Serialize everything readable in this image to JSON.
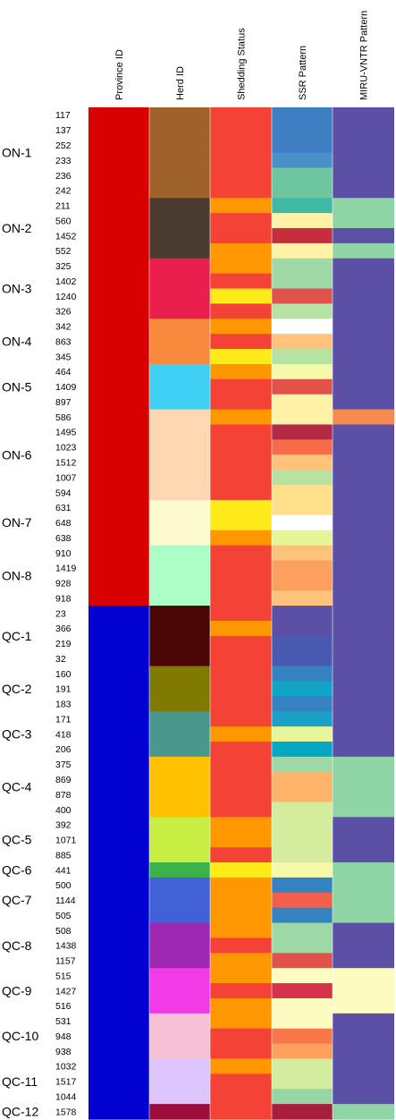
{
  "chart_data": {
    "type": "heatmap",
    "columns": [
      "Province ID",
      "Herd ID",
      "Shedding Status",
      "SSR Pattern",
      "MIRU-VNTR Pattern"
    ],
    "groups": [
      {
        "label": "ON-1",
        "rows": [
          0,
          5
        ]
      },
      {
        "label": "ON-2",
        "rows": [
          6,
          9
        ]
      },
      {
        "label": "ON-3",
        "rows": [
          10,
          13
        ]
      },
      {
        "label": "ON-4",
        "rows": [
          14,
          16
        ]
      },
      {
        "label": "ON-5",
        "rows": [
          17,
          19
        ]
      },
      {
        "label": "ON-6",
        "rows": [
          20,
          25
        ]
      },
      {
        "label": "ON-7",
        "rows": [
          26,
          28
        ]
      },
      {
        "label": "ON-8",
        "rows": [
          29,
          32
        ]
      },
      {
        "label": "QC-1",
        "rows": [
          33,
          36
        ]
      },
      {
        "label": "QC-2",
        "rows": [
          37,
          39
        ]
      },
      {
        "label": "QC-3",
        "rows": [
          40,
          42
        ]
      },
      {
        "label": "QC-4",
        "rows": [
          43,
          46
        ]
      },
      {
        "label": "QC-5",
        "rows": [
          47,
          49
        ]
      },
      {
        "label": "QC-6",
        "rows": [
          50,
          50
        ]
      },
      {
        "label": "QC-7",
        "rows": [
          51,
          53
        ]
      },
      {
        "label": "QC-8",
        "rows": [
          54,
          56
        ]
      },
      {
        "label": "QC-9",
        "rows": [
          57,
          59
        ]
      },
      {
        "label": "QC-10",
        "rows": [
          60,
          62
        ]
      },
      {
        "label": "QC-11",
        "rows": [
          63,
          65
        ]
      },
      {
        "label": "QC-12",
        "rows": [
          66,
          66
        ]
      }
    ],
    "samples": [
      {
        "id": "117",
        "colors": [
          "#d90000",
          "#a0622b",
          "#f44336",
          "#3d7fc2",
          "#5b50a5"
        ]
      },
      {
        "id": "137",
        "colors": [
          "#d90000",
          "#a0622b",
          "#f44336",
          "#3d7fc2",
          "#5b50a5"
        ]
      },
      {
        "id": "252",
        "colors": [
          "#d90000",
          "#a0622b",
          "#f44336",
          "#3d7fc2",
          "#5b50a5"
        ]
      },
      {
        "id": "233",
        "colors": [
          "#d90000",
          "#a0622b",
          "#f44336",
          "#4a90c8",
          "#5b50a5"
        ]
      },
      {
        "id": "236",
        "colors": [
          "#d90000",
          "#a0622b",
          "#f44336",
          "#6ec6a0",
          "#5b50a5"
        ]
      },
      {
        "id": "242",
        "colors": [
          "#d90000",
          "#a0622b",
          "#f44336",
          "#6ec6a0",
          "#5b50a5"
        ]
      },
      {
        "id": "211",
        "colors": [
          "#d90000",
          "#4a3c31",
          "#ff9800",
          "#3fb8a4",
          "#8fd4a4"
        ]
      },
      {
        "id": "560",
        "colors": [
          "#d90000",
          "#4a3c31",
          "#f44336",
          "#fdf2a8",
          "#8fd4a4"
        ]
      },
      {
        "id": "1452",
        "colors": [
          "#d90000",
          "#4a3c31",
          "#f44336",
          "#c62e3e",
          "#5b50a5"
        ]
      },
      {
        "id": "552",
        "colors": [
          "#d90000",
          "#4a3c31",
          "#ff9800",
          "#fdf2a8",
          "#8fd4a4"
        ]
      },
      {
        "id": "325",
        "colors": [
          "#d90000",
          "#e91e4c",
          "#ff9800",
          "#9ed8a6",
          "#5b50a5"
        ]
      },
      {
        "id": "1402",
        "colors": [
          "#d90000",
          "#e91e4c",
          "#f44336",
          "#9ed8a6",
          "#5b50a5"
        ]
      },
      {
        "id": "1240",
        "colors": [
          "#d90000",
          "#e91e4c",
          "#ffeb1a",
          "#e0524a",
          "#5b50a5"
        ]
      },
      {
        "id": "326",
        "colors": [
          "#d90000",
          "#e91e4c",
          "#f44336",
          "#b6e2a4",
          "#5b50a5"
        ]
      },
      {
        "id": "342",
        "colors": [
          "#d90000",
          "#f78a3c",
          "#ff9800",
          "#ffffff",
          "#5b50a5"
        ]
      },
      {
        "id": "863",
        "colors": [
          "#d90000",
          "#f78a3c",
          "#f44336",
          "#fec27a",
          "#5b50a5"
        ]
      },
      {
        "id": "345",
        "colors": [
          "#d90000",
          "#f78a3c",
          "#ffeb1a",
          "#b6e2a4",
          "#5b50a5"
        ]
      },
      {
        "id": "464",
        "colors": [
          "#d90000",
          "#3fcff2",
          "#ff9800",
          "#f4f8a8",
          "#5b50a5"
        ]
      },
      {
        "id": "1409",
        "colors": [
          "#d90000",
          "#3fcff2",
          "#f44336",
          "#e0524a",
          "#5b50a5"
        ]
      },
      {
        "id": "897",
        "colors": [
          "#d90000",
          "#3fcff2",
          "#f44336",
          "#fdf2a8",
          "#5b50a5"
        ]
      },
      {
        "id": "586",
        "colors": [
          "#d90000",
          "#fdd6b2",
          "#ff9800",
          "#fdf2a8",
          "#f78a4e"
        ]
      },
      {
        "id": "1495",
        "colors": [
          "#d90000",
          "#fdd6b2",
          "#f44336",
          "#b22a45",
          "#5b50a5"
        ]
      },
      {
        "id": "1023",
        "colors": [
          "#d90000",
          "#fdd6b2",
          "#f44336",
          "#f86b48",
          "#5b50a5"
        ]
      },
      {
        "id": "1512",
        "colors": [
          "#d90000",
          "#fdd6b2",
          "#f44336",
          "#fec27a",
          "#5b50a5"
        ]
      },
      {
        "id": "1007",
        "colors": [
          "#d90000",
          "#fdd6b2",
          "#f44336",
          "#b6e2a4",
          "#5b50a5"
        ]
      },
      {
        "id": "594",
        "colors": [
          "#d90000",
          "#fdd6b2",
          "#f44336",
          "#fee08b",
          "#5b50a5"
        ]
      },
      {
        "id": "631",
        "colors": [
          "#d90000",
          "#fefbd0",
          "#ffeb1a",
          "#fee08b",
          "#5b50a5"
        ]
      },
      {
        "id": "648",
        "colors": [
          "#d90000",
          "#fefbd0",
          "#ffeb1a",
          "#ffffff",
          "#5b50a5"
        ]
      },
      {
        "id": "638",
        "colors": [
          "#d90000",
          "#fefbd0",
          "#ff9800",
          "#e6f59a",
          "#5b50a5"
        ]
      },
      {
        "id": "910",
        "colors": [
          "#d90000",
          "#acfcc6",
          "#f44336",
          "#fec27a",
          "#5b50a5"
        ]
      },
      {
        "id": "1419",
        "colors": [
          "#d90000",
          "#acfcc6",
          "#f44336",
          "#fda05e",
          "#5b50a5"
        ]
      },
      {
        "id": "928",
        "colors": [
          "#d90000",
          "#acfcc6",
          "#f44336",
          "#fda05e",
          "#5b50a5"
        ]
      },
      {
        "id": "918",
        "colors": [
          "#d90000",
          "#acfcc6",
          "#f44336",
          "#fec27a",
          "#5b50a5"
        ]
      },
      {
        "id": "23",
        "colors": [
          "#0000d0",
          "#4a0505",
          "#f44336",
          "#5b50a5",
          "#5b50a5"
        ]
      },
      {
        "id": "366",
        "colors": [
          "#0000d0",
          "#4a0505",
          "#ff9800",
          "#5b50a5",
          "#5b50a5"
        ]
      },
      {
        "id": "219",
        "colors": [
          "#0000d0",
          "#4a0505",
          "#f44336",
          "#4a5ab0",
          "#5b50a5"
        ]
      },
      {
        "id": "32",
        "colors": [
          "#0000d0",
          "#4a0505",
          "#f44336",
          "#4a5ab0",
          "#5b50a5"
        ]
      },
      {
        "id": "160",
        "colors": [
          "#0000d0",
          "#7f7a00",
          "#f44336",
          "#3483c0",
          "#5b50a5"
        ]
      },
      {
        "id": "191",
        "colors": [
          "#0000d0",
          "#7f7a00",
          "#f44336",
          "#0fa6c6",
          "#5b50a5"
        ]
      },
      {
        "id": "183",
        "colors": [
          "#0000d0",
          "#7f7a00",
          "#f44336",
          "#3483c0",
          "#5b50a5"
        ]
      },
      {
        "id": "171",
        "colors": [
          "#0000d0",
          "#4a978e",
          "#f44336",
          "#1ba0c8",
          "#5b50a5"
        ]
      },
      {
        "id": "418",
        "colors": [
          "#0000d0",
          "#4a978e",
          "#ff9800",
          "#e6f59a",
          "#5b50a5"
        ]
      },
      {
        "id": "206",
        "colors": [
          "#0000d0",
          "#4a978e",
          "#f44336",
          "#05a8c2",
          "#5b50a5"
        ]
      },
      {
        "id": "375",
        "colors": [
          "#0000d0",
          "#ffc000",
          "#f44336",
          "#9ed8a6",
          "#8fd4a4"
        ]
      },
      {
        "id": "869",
        "colors": [
          "#0000d0",
          "#ffc000",
          "#f44336",
          "#fdb46a",
          "#8fd4a4"
        ]
      },
      {
        "id": "878",
        "colors": [
          "#0000d0",
          "#ffc000",
          "#f44336",
          "#fdb46a",
          "#8fd4a4"
        ]
      },
      {
        "id": "400",
        "colors": [
          "#0000d0",
          "#ffc000",
          "#f44336",
          "#d4ec9e",
          "#8fd4a4"
        ]
      },
      {
        "id": "392",
        "colors": [
          "#0000d0",
          "#c8ee44",
          "#ff9800",
          "#d4ec9e",
          "#5b50a5"
        ]
      },
      {
        "id": "1071",
        "colors": [
          "#0000d0",
          "#c8ee44",
          "#ff9800",
          "#d4ec9e",
          "#5b50a5"
        ]
      },
      {
        "id": "885",
        "colors": [
          "#0000d0",
          "#c8ee44",
          "#f44336",
          "#d4ec9e",
          "#5b50a5"
        ]
      },
      {
        "id": "441",
        "colors": [
          "#0000d0",
          "#3cb24a",
          "#ffeb1a",
          "#f4f8a8",
          "#8fd4a4"
        ]
      },
      {
        "id": "500",
        "colors": [
          "#0000d0",
          "#4361d6",
          "#ff9800",
          "#3483c0",
          "#8fd4a4"
        ]
      },
      {
        "id": "1144",
        "colors": [
          "#0000d0",
          "#4361d6",
          "#ff9800",
          "#f0604a",
          "#8fd4a4"
        ]
      },
      {
        "id": "505",
        "colors": [
          "#0000d0",
          "#4361d6",
          "#ff9800",
          "#3483c0",
          "#8fd4a4"
        ]
      },
      {
        "id": "508",
        "colors": [
          "#0000d0",
          "#9c27b0",
          "#ff9800",
          "#9ed8a6",
          "#5b50a5"
        ]
      },
      {
        "id": "1438",
        "colors": [
          "#0000d0",
          "#9c27b0",
          "#f44336",
          "#9ed8a6",
          "#5b50a5"
        ]
      },
      {
        "id": "1157",
        "colors": [
          "#0000d0",
          "#9c27b0",
          "#ff9800",
          "#e0524a",
          "#5b50a5"
        ]
      },
      {
        "id": "515",
        "colors": [
          "#0000d0",
          "#f03ae6",
          "#ff9800",
          "#fefbc0",
          "#fefbc0"
        ]
      },
      {
        "id": "1427",
        "colors": [
          "#0000d0",
          "#f03ae6",
          "#f44336",
          "#d6324a",
          "#fefbc0"
        ]
      },
      {
        "id": "516",
        "colors": [
          "#0000d0",
          "#f03ae6",
          "#ff9800",
          "#fefbc0",
          "#fefbc0"
        ]
      },
      {
        "id": "531",
        "colors": [
          "#0000d0",
          "#f8c0d4",
          "#ff9800",
          "#fefbc0",
          "#5b50a5"
        ]
      },
      {
        "id": "948",
        "colors": [
          "#0000d0",
          "#f8c0d4",
          "#f44336",
          "#f8784c",
          "#5b50a5"
        ]
      },
      {
        "id": "938",
        "colors": [
          "#0000d0",
          "#f8c0d4",
          "#f44336",
          "#fda05e",
          "#5b50a5"
        ]
      },
      {
        "id": "1032",
        "colors": [
          "#0000d0",
          "#dcc4fc",
          "#ff9800",
          "#d4ec9e",
          "#5b50a5"
        ]
      },
      {
        "id": "1517",
        "colors": [
          "#0000d0",
          "#dcc4fc",
          "#f44336",
          "#d4ec9e",
          "#5b50a5"
        ]
      },
      {
        "id": "1044",
        "colors": [
          "#0000d0",
          "#dcc4fc",
          "#f44336",
          "#96d6a4",
          "#5b50a5"
        ]
      },
      {
        "id": "1578",
        "colors": [
          "#0000d0",
          "#9c0d3c",
          "#f44336",
          "#a81c3c",
          "#8fd4a4"
        ]
      }
    ]
  }
}
